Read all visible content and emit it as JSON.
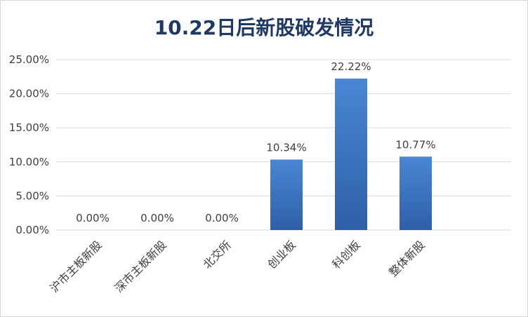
{
  "chart_data": {
    "type": "bar",
    "title": "10.22日后新股破发情况",
    "categories": [
      "沪市主板新股",
      "深市主板新股",
      "北交所",
      "创业板",
      "科创板",
      "整体新股"
    ],
    "values": [
      0.0,
      0.0,
      0.0,
      10.34,
      22.22,
      10.77
    ],
    "data_labels": [
      "0.00%",
      "0.00%",
      "0.00%",
      "10.34%",
      "22.22%",
      "10.77%"
    ],
    "y_ticks": [
      "0.00%",
      "5.00%",
      "10.00%",
      "15.00%",
      "20.00%",
      "25.00%"
    ],
    "ylim": [
      0,
      25
    ],
    "xlabel": "",
    "ylabel": "",
    "grid": true,
    "legend": "none",
    "colors": {
      "bar_top": "#4a86d4",
      "bar_bottom": "#2e5fa8",
      "title": "#1f3864",
      "text": "#404040",
      "grid": "#d9d9d9"
    }
  }
}
